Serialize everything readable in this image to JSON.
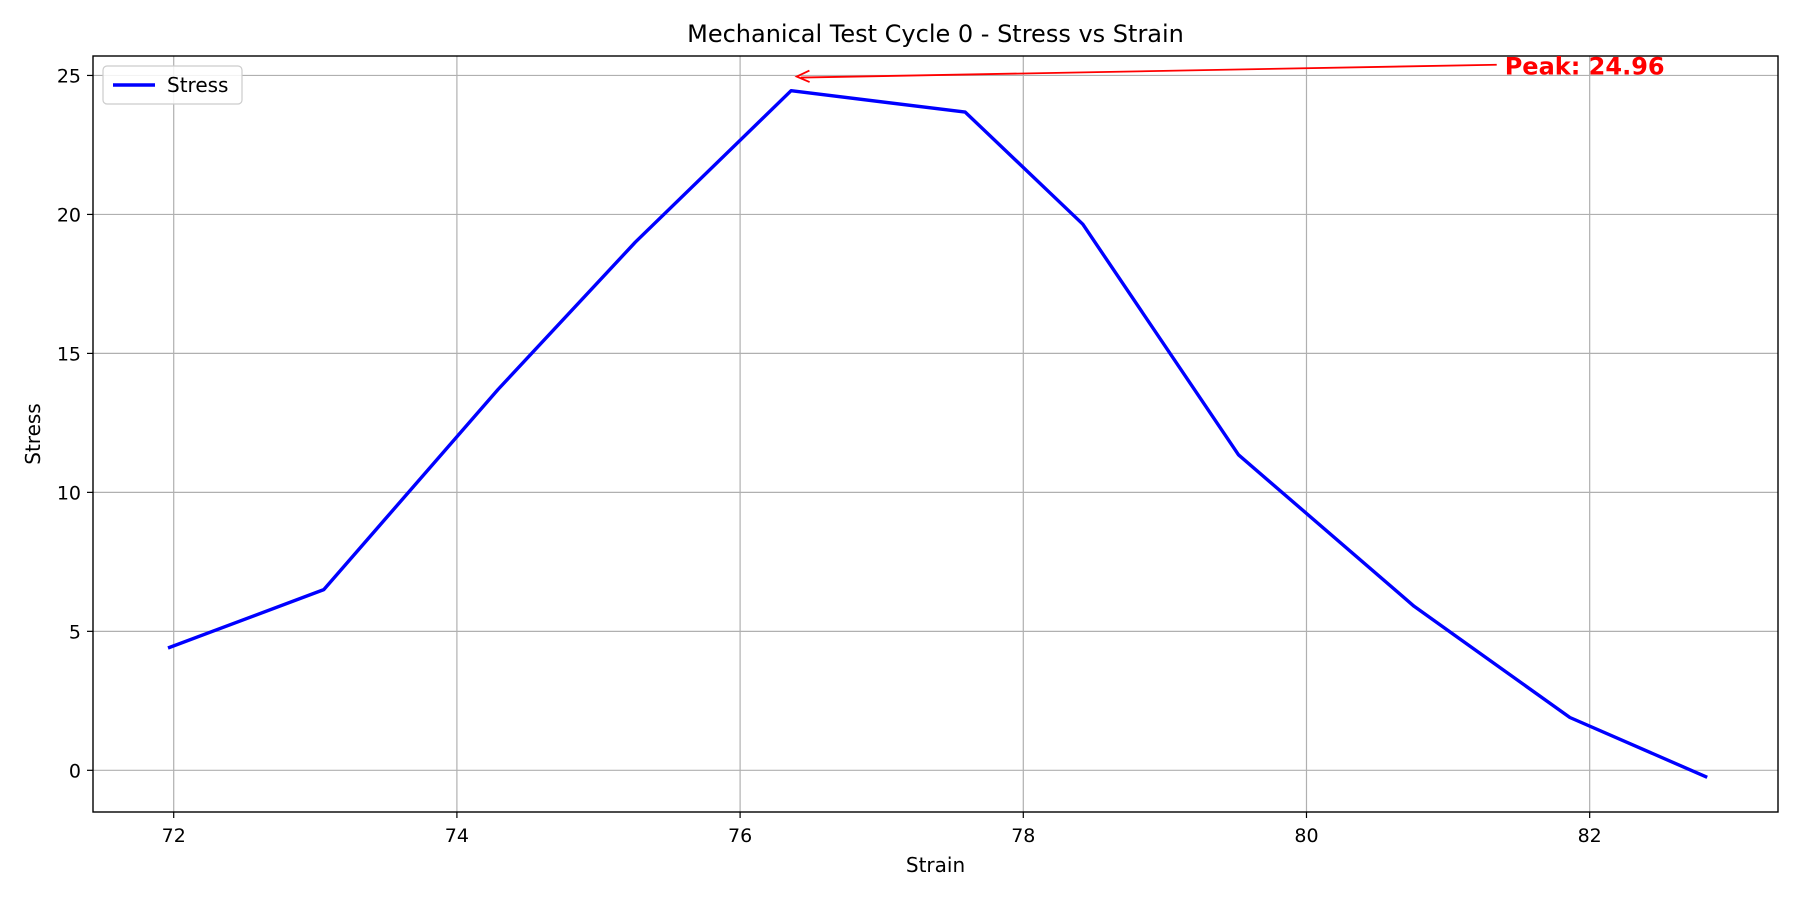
{
  "chart_data": {
    "type": "line",
    "title": "Mechanical Test Cycle 0 - Stress vs Strain",
    "xlabel": "Strain",
    "ylabel": "Stress",
    "xlim": [
      71.43,
      83.33
    ],
    "ylim": [
      -1.5,
      25.7
    ],
    "xticks": [
      72,
      74,
      76,
      78,
      80,
      82
    ],
    "yticks": [
      0,
      5,
      10,
      15,
      20,
      25
    ],
    "grid": true,
    "legend": {
      "position": "top-left",
      "entries": [
        "Stress"
      ]
    },
    "series": [
      {
        "name": "Stress",
        "color": "#0000ff",
        "x": [
          71.96,
          73.06,
          74.29,
          75.26,
          76.36,
          77.59,
          78.42,
          79.52,
          80.76,
          81.86,
          82.83
        ],
        "y": [
          4.4,
          6.5,
          13.7,
          19.0,
          24.45,
          23.68,
          19.65,
          11.35,
          5.9,
          1.9,
          -0.25
        ]
      }
    ],
    "annotations": [
      {
        "text": "Peak: 24.96",
        "color": "#ff0000",
        "point": [
          76.4,
          24.96
        ],
        "text_at": [
          81.4,
          25.35
        ]
      }
    ]
  }
}
